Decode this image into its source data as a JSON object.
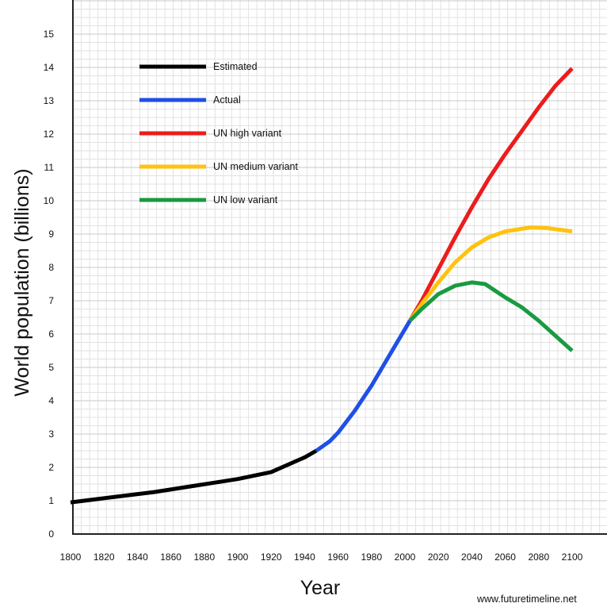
{
  "chart_data": {
    "type": "line",
    "title": "",
    "xlabel": "Year",
    "ylabel": "World population (billions)",
    "xlim": [
      1800,
      2100
    ],
    "ylim": [
      0,
      15
    ],
    "x_ticks": [
      1800,
      1820,
      1840,
      1860,
      1880,
      1900,
      1920,
      1940,
      1960,
      1980,
      2000,
      2020,
      2040,
      2060,
      2080,
      2100
    ],
    "y_ticks": [
      0,
      1,
      2,
      3,
      4,
      5,
      6,
      7,
      8,
      9,
      10,
      11,
      12,
      13,
      14,
      15
    ],
    "grid": true,
    "legend_position": "top-left",
    "series": [
      {
        "name": "Estimated",
        "color": "#000000",
        "points": [
          [
            1800,
            0.95
          ],
          [
            1850,
            1.26
          ],
          [
            1900,
            1.65
          ],
          [
            1920,
            1.86
          ],
          [
            1940,
            2.3
          ],
          [
            1947,
            2.5
          ]
        ]
      },
      {
        "name": "Actual",
        "color": "#1f4fe6",
        "points": [
          [
            1947,
            2.5
          ],
          [
            1955,
            2.78
          ],
          [
            1960,
            3.04
          ],
          [
            1970,
            3.7
          ],
          [
            1980,
            4.45
          ],
          [
            1990,
            5.3
          ],
          [
            2003,
            6.4
          ]
        ]
      },
      {
        "name": "UN high variant",
        "color": "#ec1c1c",
        "points": [
          [
            2003,
            6.4
          ],
          [
            2010,
            7.0
          ],
          [
            2020,
            7.95
          ],
          [
            2030,
            8.9
          ],
          [
            2040,
            9.8
          ],
          [
            2050,
            10.65
          ],
          [
            2060,
            11.4
          ],
          [
            2070,
            12.1
          ],
          [
            2080,
            12.8
          ],
          [
            2090,
            13.45
          ],
          [
            2100,
            13.97
          ]
        ]
      },
      {
        "name": "UN medium variant",
        "color": "#ffc20e",
        "points": [
          [
            2003,
            6.4
          ],
          [
            2010,
            6.9
          ],
          [
            2020,
            7.55
          ],
          [
            2030,
            8.15
          ],
          [
            2040,
            8.6
          ],
          [
            2050,
            8.9
          ],
          [
            2060,
            9.08
          ],
          [
            2075,
            9.2
          ],
          [
            2085,
            9.18
          ],
          [
            2100,
            9.08
          ]
        ]
      },
      {
        "name": "UN low variant",
        "color": "#1a9a41",
        "points": [
          [
            2003,
            6.4
          ],
          [
            2010,
            6.75
          ],
          [
            2020,
            7.2
          ],
          [
            2030,
            7.45
          ],
          [
            2040,
            7.55
          ],
          [
            2048,
            7.5
          ],
          [
            2060,
            7.1
          ],
          [
            2070,
            6.8
          ],
          [
            2080,
            6.4
          ],
          [
            2090,
            5.95
          ],
          [
            2100,
            5.5
          ]
        ]
      }
    ]
  },
  "credit": "www.futuretimeline.net"
}
